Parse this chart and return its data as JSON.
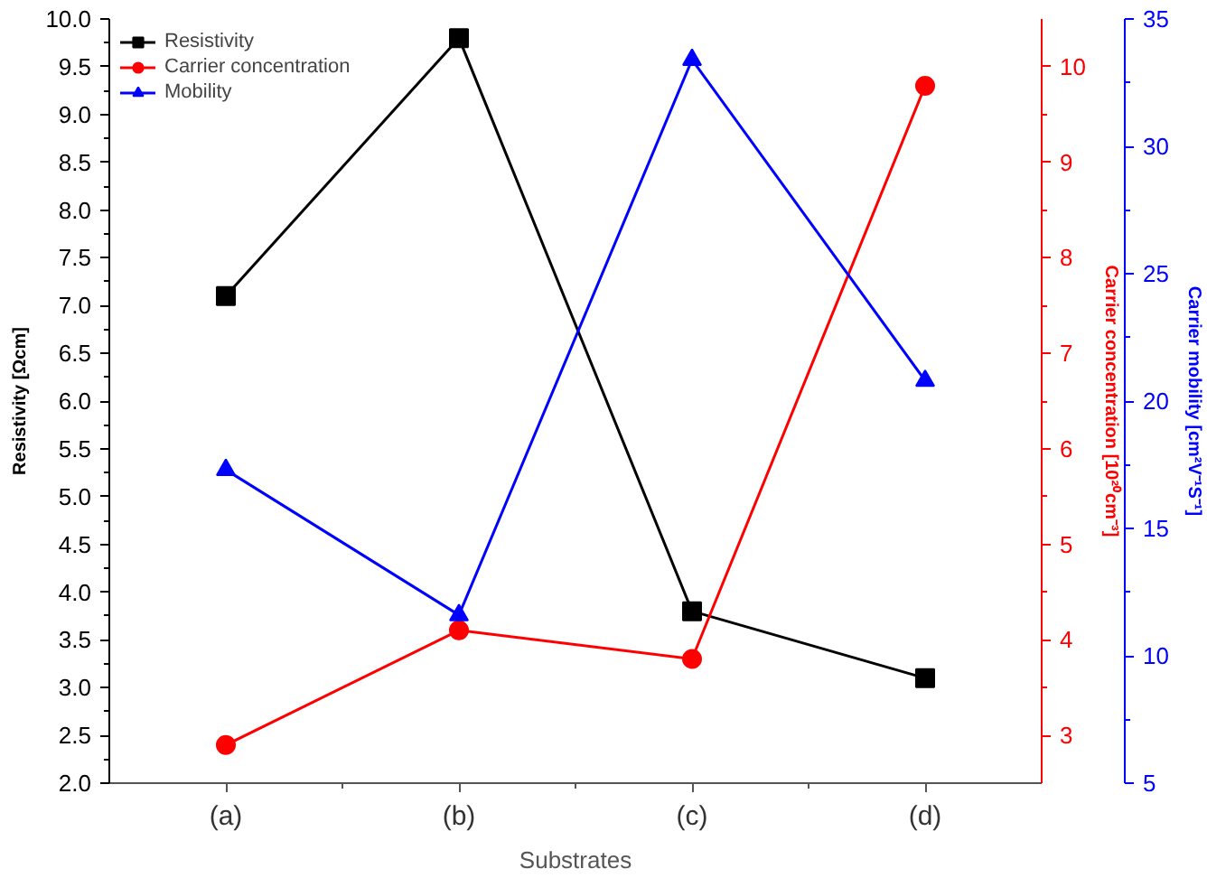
{
  "chart_data": {
    "type": "line",
    "xlabel": "Substrates",
    "ylabel": "Resistivity [Ωcm]",
    "y2label": "Carrier concentration [10²⁰cm⁻³]",
    "y3label": "Carrier mobility [cm²V⁻¹S⁻¹]",
    "categories": [
      "(a)",
      "(b)",
      "(c)",
      "(d)"
    ],
    "ylim": [
      2.0,
      10.0
    ],
    "yticks": [
      {
        "value": 2,
        "label": "2.0"
      },
      {
        "value": 2.5,
        "label": "2.5"
      },
      {
        "value": 3,
        "label": "3.0"
      },
      {
        "value": 3.5,
        "label": "3.5"
      },
      {
        "value": 4,
        "label": "4.0"
      },
      {
        "value": 4.5,
        "label": "4.5"
      },
      {
        "value": 5,
        "label": "5.0"
      },
      {
        "value": 5.5,
        "label": "5.5"
      },
      {
        "value": 6,
        "label": "6.0"
      },
      {
        "value": 6.5,
        "label": "6.5"
      },
      {
        "value": 7,
        "label": "7.0"
      },
      {
        "value": 7.5,
        "label": "7.5"
      },
      {
        "value": 8,
        "label": "8.0"
      },
      {
        "value": 8.5,
        "label": "8.5"
      },
      {
        "value": 9,
        "label": "9.0"
      },
      {
        "value": 9.5,
        "label": "9.5"
      },
      {
        "value": 10,
        "label": "10.0"
      }
    ],
    "y2lim": [
      2.5,
      10.5
    ],
    "y2ticks": [
      3,
      4,
      5,
      6,
      7,
      8,
      9,
      10
    ],
    "y3lim": [
      5,
      35
    ],
    "y3ticks": [
      5,
      10,
      15,
      20,
      25,
      30,
      35
    ],
    "grid": false,
    "legend": "top left",
    "series": [
      {
        "name": "Resistivity",
        "color": "#000000",
        "marker": "square",
        "values": [
          7.1,
          9.8,
          3.8,
          3.1
        ]
      },
      {
        "name": "Carrier concentration",
        "color": "#ff0000",
        "marker": "circle",
        "axis": "y2",
        "values": [
          2.9,
          4.1,
          3.8,
          9.8
        ]
      },
      {
        "name": "Mobility",
        "color": "#0000ff",
        "marker": "triangle",
        "axis": "y3",
        "values": [
          17.3,
          11.6,
          33.4,
          20.8
        ]
      }
    ]
  }
}
